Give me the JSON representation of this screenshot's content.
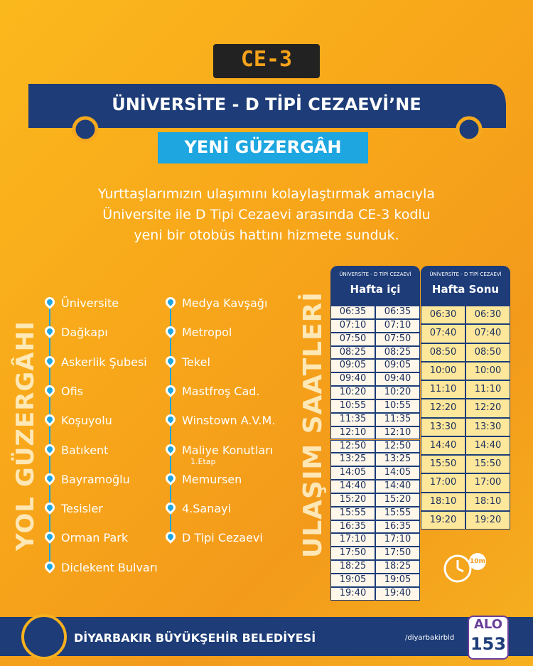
{
  "header": {
    "code": "CE-3",
    "title": "ÜNİVERSİTE - D TİPİ CEZAEVİ’NE",
    "subtitle": "YENİ GÜZERGÂH"
  },
  "intro": [
    "Yurttaşlarımızın ulaşımını kolaylaştırmak amacıyla",
    "Üniversite ile D Tipi Cezaevi arasında CE-3 kodlu",
    "yeni bir otobüs hattını hizmete sunduk."
  ],
  "route": {
    "label": "YOL GÜZERGÂHI",
    "left": [
      {
        "name": "Üniversite"
      },
      {
        "name": "Dağkapı"
      },
      {
        "name": "Askerlik Şubesi"
      },
      {
        "name": "Ofis"
      },
      {
        "name": "Koşuyolu"
      },
      {
        "name": "Batıkent"
      },
      {
        "name": "Bayramoğlu"
      },
      {
        "name": "Tesisler"
      },
      {
        "name": "Orman Park"
      },
      {
        "name": "Diclekent Bulvarı"
      }
    ],
    "right": [
      {
        "name": "Medya Kavşağı"
      },
      {
        "name": "Metropol"
      },
      {
        "name": "Tekel"
      },
      {
        "name": "Mastfroş Cad."
      },
      {
        "name": "Winstown A.V.M."
      },
      {
        "name": "Maliye Konutları",
        "note": "1.Etap"
      },
      {
        "name": "Memursen"
      },
      {
        "name": "4.Sanayi"
      },
      {
        "name": "D Tipi Cezaevi"
      }
    ]
  },
  "schedule": {
    "label": "ULAŞIM SAATLERİ",
    "duration": "10m",
    "weekday": {
      "line": "ÜNİVERSİTE - D TİPİ CEZAEVİ",
      "title": "Hafta içi",
      "rows": [
        [
          "06:35",
          "06:35"
        ],
        [
          "07:10",
          "07:10"
        ],
        [
          "07:50",
          "07:50"
        ],
        [
          "08:25",
          "08:25"
        ],
        [
          "09:05",
          "09:05"
        ],
        [
          "09:40",
          "09:40"
        ],
        [
          "10:20",
          "10:20"
        ],
        [
          "10:55",
          "10:55"
        ],
        [
          "11:35",
          "11:35"
        ],
        [
          "12:10",
          "12:10"
        ],
        [
          "12:50",
          "12:50"
        ],
        [
          "13:25",
          "13:25"
        ],
        [
          "14:05",
          "14:05"
        ],
        [
          "14:40",
          "14:40"
        ],
        [
          "15:20",
          "15:20"
        ],
        [
          "15:55",
          "15:55"
        ],
        [
          "16:35",
          "16:35"
        ],
        [
          "17:10",
          "17:10"
        ],
        [
          "17:50",
          "17:50"
        ],
        [
          "18:25",
          "18:25"
        ],
        [
          "19:05",
          "19:05"
        ],
        [
          "19:40",
          "19:40"
        ]
      ]
    },
    "weekend": {
      "line": "ÜNİVERSİTE - D TİPİ CEZAEVİ",
      "title": "Hafta Sonu",
      "rows": [
        [
          "06:30",
          "06:30"
        ],
        [
          "07:40",
          "07:40"
        ],
        [
          "08:50",
          "08:50"
        ],
        [
          "10:00",
          "10:00"
        ],
        [
          "11:10",
          "11:10"
        ],
        [
          "12:20",
          "12:20"
        ],
        [
          "13:30",
          "13:30"
        ],
        [
          "14:40",
          "14:40"
        ],
        [
          "15:50",
          "15:50"
        ],
        [
          "17:00",
          "17:00"
        ],
        [
          "18:10",
          "18:10"
        ],
        [
          "19:20",
          "19:20"
        ]
      ]
    }
  },
  "footer": {
    "org": "DİYARBAKIR BÜYÜKŞEHİR BELEDİYESİ",
    "social": "/diyarbakirbld",
    "alo": "ALO",
    "number": "153"
  }
}
